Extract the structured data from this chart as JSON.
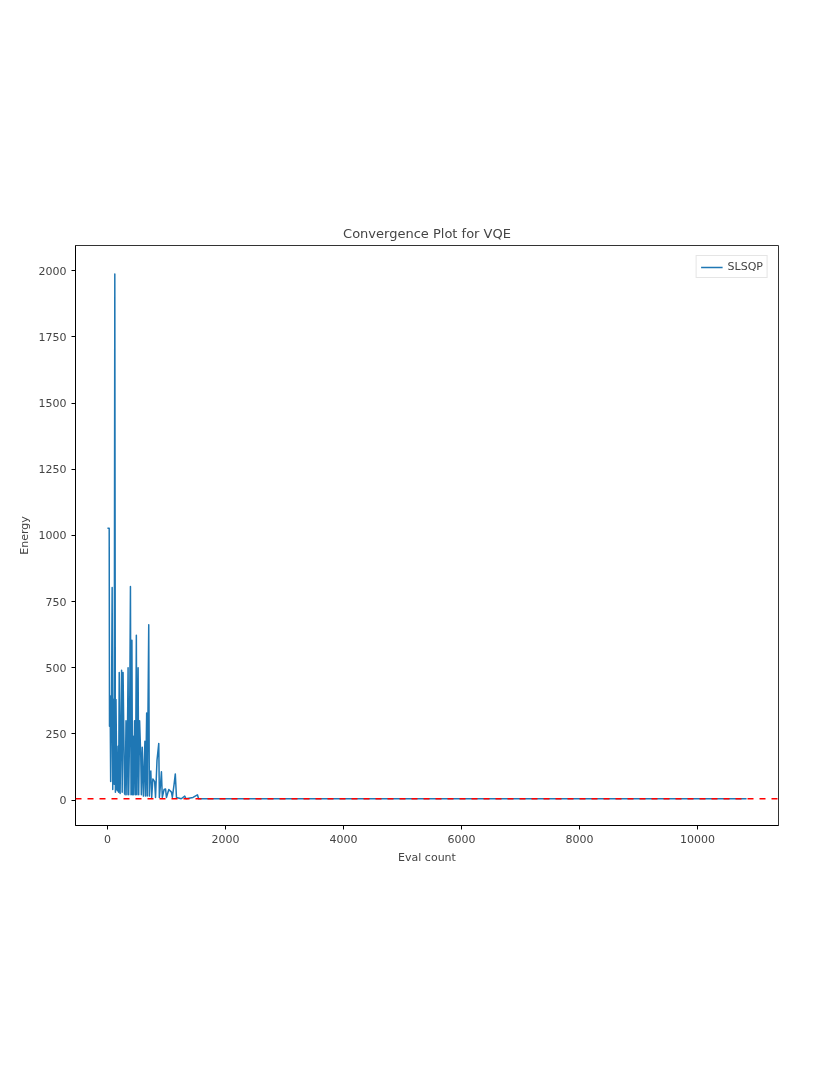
{
  "chart_data": {
    "type": "line",
    "title": "Convergence Plot for VQE",
    "xlabel": "Eval count",
    "ylabel": "Energy",
    "series": [
      {
        "name": "SLSQP",
        "color": "#1f77b4",
        "x": [
          0,
          30,
          35,
          45,
          55,
          70,
          80,
          90,
          100,
          115,
          125,
          135,
          145,
          160,
          170,
          181,
          190,
          200,
          215,
          240,
          250,
          265,
          290,
          300,
          315,
          330,
          350,
          360,
          375,
          390,
          400,
          415,
          425,
          435,
          445,
          460,
          475,
          490,
          500,
          520,
          530,
          545,
          565,
          575,
          590,
          610,
          635,
          645,
          665,
          675,
          700,
          710,
          720,
          735,
          750,
          770,
          800,
          815,
          840,
          870,
          880,
          900,
          915,
          930,
          960,
          985,
          1000,
          1040,
          1085,
          1100,
          1130,
          1150,
          1170,
          1250,
          1310,
          1330,
          1450,
          1525,
          1545,
          1600,
          2000,
          4000,
          6000,
          8000,
          10830
        ],
        "values": [
          1027,
          1027,
          279,
          394,
          70,
          390,
          803,
          40,
          380,
          60,
          1987,
          30,
          380,
          40,
          35,
          203,
          30,
          482,
          25,
          490,
          30,
          482,
          25,
          20,
          300,
          20,
          500,
          20,
          250,
          807,
          20,
          604,
          20,
          241,
          20,
          300,
          20,
          623,
          20,
          500,
          20,
          300,
          164,
          20,
          200,
          15,
          222,
          15,
          329,
          15,
          662,
          15,
          100,
          110,
          10,
          80,
          70,
          10,
          150,
          214,
          10,
          60,
          107,
          10,
          40,
          42,
          10,
          40,
          30,
          10,
          60,
          99,
          10,
          5,
          15,
          5,
          10,
          20,
          5,
          5,
          5,
          5,
          5,
          5,
          5
        ]
      }
    ],
    "xlim": [
      -541,
      11371
    ],
    "ylim": [
      -96,
      2095
    ],
    "xticks": [
      0,
      2000,
      4000,
      6000,
      8000,
      10000
    ],
    "yticks": [
      0,
      250,
      500,
      750,
      1000,
      1250,
      1500,
      1750,
      2000
    ],
    "ref_lines": [
      {
        "axis": "y",
        "value": 5,
        "color": "#ff0000",
        "line_style": "dashed"
      }
    ],
    "grid": false,
    "legend": "top right"
  }
}
